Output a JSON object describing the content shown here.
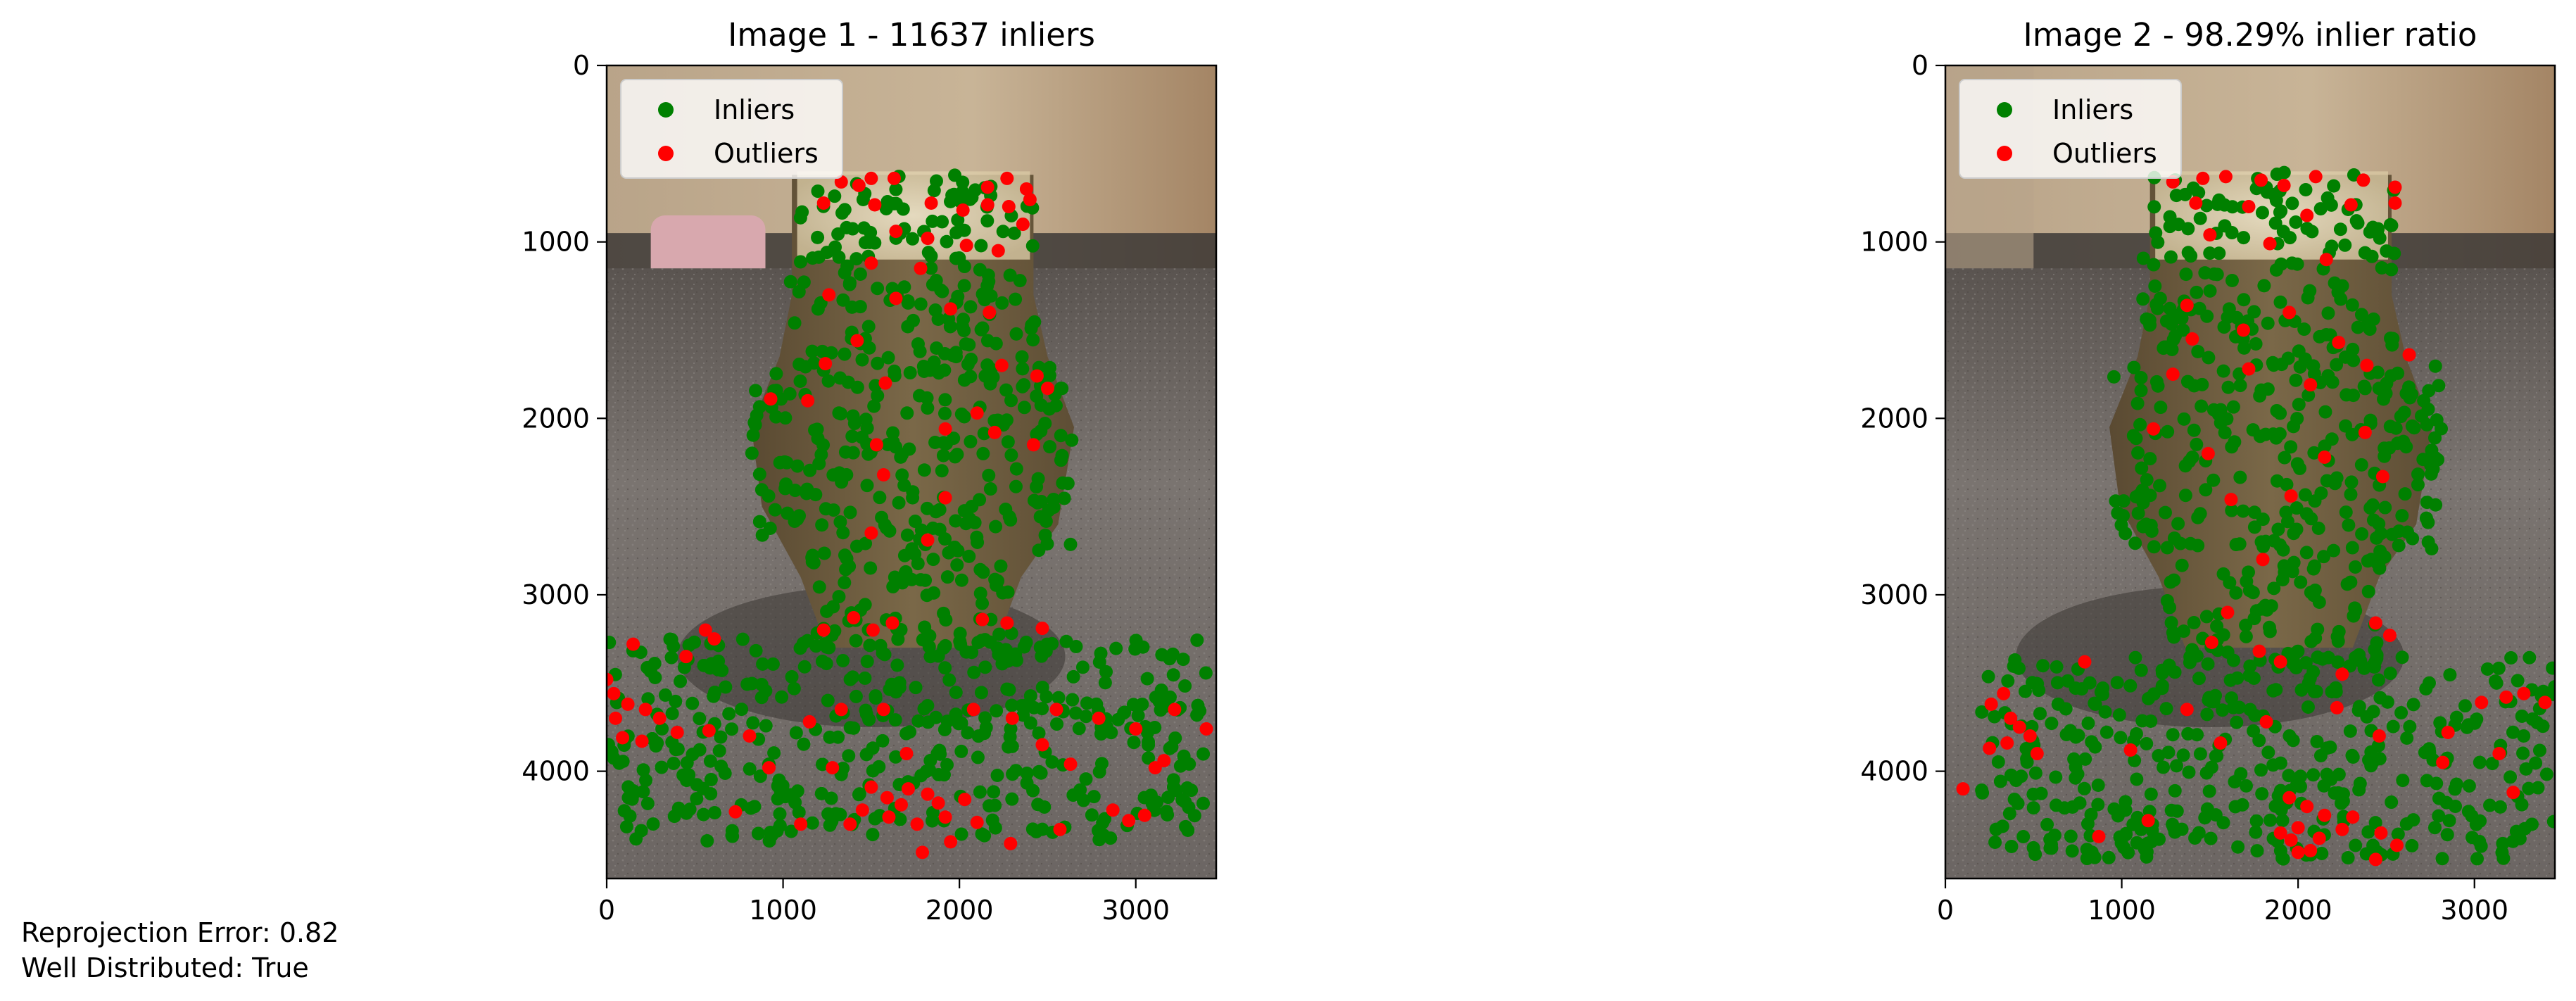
{
  "chart_data": [
    {
      "type": "scatter",
      "title": "Image 1 - 11637 inliers",
      "xlabel": "",
      "ylabel": "",
      "xlim": [
        0,
        3456
      ],
      "ylim": [
        4608,
        0
      ],
      "xticks": [
        0,
        1000,
        2000,
        3000
      ],
      "yticks": [
        0,
        1000,
        2000,
        3000,
        4000
      ],
      "grid": false,
      "legend_position": "upper-left",
      "series": [
        {
          "name": "Inliers",
          "color": "#008000",
          "regions": [
            {
              "x": [
                1080,
                2420
              ],
              "y": [
                620,
                1000
              ]
            },
            {
              "x": [
                1030,
                2450
              ],
              "y": [
                1000,
                1700
              ]
            },
            {
              "x": [
                820,
                2650
              ],
              "y": [
                1700,
                2750
              ]
            },
            {
              "x": [
                1150,
                2300
              ],
              "y": [
                2750,
                3350
              ]
            },
            {
              "x": [
                0,
                3400
              ],
              "y": [
                3250,
                4400
              ]
            }
          ]
        },
        {
          "name": "Outliers",
          "color": "#ff0000",
          "points": [
            [
              1330,
              660
            ],
            [
              1430,
              680
            ],
            [
              1500,
              640
            ],
            [
              1630,
              640
            ],
            [
              2160,
              690
            ],
            [
              2270,
              640
            ],
            [
              2380,
              700
            ],
            [
              2400,
              760
            ],
            [
              1230,
              780
            ],
            [
              1520,
              790
            ],
            [
              1840,
              780
            ],
            [
              2020,
              820
            ],
            [
              2160,
              790
            ],
            [
              2280,
              800
            ],
            [
              2360,
              900
            ],
            [
              1640,
              940
            ],
            [
              1820,
              980
            ],
            [
              2040,
              1020
            ],
            [
              2220,
              1050
            ],
            [
              1500,
              1120
            ],
            [
              1780,
              1150
            ],
            [
              1260,
              1300
            ],
            [
              1640,
              1320
            ],
            [
              1950,
              1380
            ],
            [
              2170,
              1400
            ],
            [
              1420,
              1560
            ],
            [
              1240,
              1690
            ],
            [
              2440,
              1760
            ],
            [
              2500,
              1830
            ],
            [
              930,
              1890
            ],
            [
              1140,
              1900
            ],
            [
              1580,
              1800
            ],
            [
              2240,
              1700
            ],
            [
              2100,
              1970
            ],
            [
              1920,
              2060
            ],
            [
              2200,
              2080
            ],
            [
              1530,
              2150
            ],
            [
              2420,
              2150
            ],
            [
              1570,
              2320
            ],
            [
              1920,
              2450
            ],
            [
              1820,
              2690
            ],
            [
              1500,
              2650
            ],
            [
              1230,
              3200
            ],
            [
              1400,
              3130
            ],
            [
              1510,
              3200
            ],
            [
              1620,
              3160
            ],
            [
              2130,
              3140
            ],
            [
              2270,
              3160
            ],
            [
              2470,
              3190
            ],
            [
              560,
              3200
            ],
            [
              610,
              3250
            ],
            [
              150,
              3280
            ],
            [
              450,
              3350
            ],
            [
              0,
              3480
            ],
            [
              40,
              3560
            ],
            [
              120,
              3620
            ],
            [
              220,
              3650
            ],
            [
              300,
              3700
            ],
            [
              50,
              3700
            ],
            [
              400,
              3780
            ],
            [
              90,
              3810
            ],
            [
              200,
              3830
            ],
            [
              580,
              3770
            ],
            [
              810,
              3800
            ],
            [
              1150,
              3720
            ],
            [
              1330,
              3650
            ],
            [
              1570,
              3650
            ],
            [
              2080,
              3650
            ],
            [
              2300,
              3700
            ],
            [
              2550,
              3650
            ],
            [
              2790,
              3700
            ],
            [
              3000,
              3760
            ],
            [
              3220,
              3650
            ],
            [
              3400,
              3760
            ],
            [
              2470,
              3850
            ],
            [
              1700,
              3900
            ],
            [
              1280,
              3980
            ],
            [
              920,
              3980
            ],
            [
              2630,
              3960
            ],
            [
              3110,
              3980
            ],
            [
              3160,
              3940
            ],
            [
              1500,
              4090
            ],
            [
              1590,
              4150
            ],
            [
              1670,
              4190
            ],
            [
              1710,
              4100
            ],
            [
              1820,
              4130
            ],
            [
              1880,
              4180
            ],
            [
              1600,
              4260
            ],
            [
              1760,
              4300
            ],
            [
              1920,
              4260
            ],
            [
              2030,
              4160
            ],
            [
              1450,
              4220
            ],
            [
              1380,
              4300
            ],
            [
              2100,
              4290
            ],
            [
              2870,
              4220
            ],
            [
              2960,
              4280
            ],
            [
              3050,
              4250
            ],
            [
              1790,
              4460
            ],
            [
              1950,
              4400
            ],
            [
              2290,
              4410
            ],
            [
              1100,
              4300
            ],
            [
              730,
              4230
            ],
            [
              2570,
              4330
            ]
          ]
        }
      ]
    },
    {
      "type": "scatter",
      "title": "Image 2 - 98.29% inlier ratio",
      "xlabel": "",
      "ylabel": "",
      "xlim": [
        0,
        3456
      ],
      "ylim": [
        4608,
        0
      ],
      "xticks": [
        0,
        1000,
        2000,
        3000
      ],
      "yticks": [
        0,
        1000,
        2000,
        3000,
        4000
      ],
      "grid": false,
      "legend_position": "upper-left",
      "series": [
        {
          "name": "Inliers",
          "color": "#008000",
          "regions": [
            {
              "x": [
                1160,
                2560
              ],
              "y": [
                600,
                1000
              ]
            },
            {
              "x": [
                1120,
                2560
              ],
              "y": [
                1000,
                1700
              ]
            },
            {
              "x": [
                950,
                2820
              ],
              "y": [
                1700,
                2750
              ]
            },
            {
              "x": [
                1250,
                2500
              ],
              "y": [
                2750,
                3400
              ]
            },
            {
              "x": [
                200,
                3456
              ],
              "y": [
                3350,
                4500
              ]
            }
          ]
        },
        {
          "name": "Outliers",
          "color": "#ff0000",
          "points": [
            [
              1290,
              660
            ],
            [
              1460,
              640
            ],
            [
              1590,
              630
            ],
            [
              1790,
              650
            ],
            [
              1920,
              680
            ],
            [
              2100,
              630
            ],
            [
              2370,
              650
            ],
            [
              2550,
              690
            ],
            [
              2550,
              780
            ],
            [
              1420,
              780
            ],
            [
              1720,
              800
            ],
            [
              2050,
              850
            ],
            [
              2300,
              790
            ],
            [
              1500,
              960
            ],
            [
              1840,
              1010
            ],
            [
              2160,
              1100
            ],
            [
              1370,
              1360
            ],
            [
              1400,
              1550
            ],
            [
              1690,
              1500
            ],
            [
              1950,
              1400
            ],
            [
              2230,
              1570
            ],
            [
              1290,
              1750
            ],
            [
              1720,
              1720
            ],
            [
              2070,
              1810
            ],
            [
              2390,
              1700
            ],
            [
              2630,
              1640
            ],
            [
              1180,
              2060
            ],
            [
              1490,
              2200
            ],
            [
              2150,
              2220
            ],
            [
              2480,
              2330
            ],
            [
              1620,
              2460
            ],
            [
              1960,
              2440
            ],
            [
              2380,
              2080
            ],
            [
              1800,
              2800
            ],
            [
              1600,
              3100
            ],
            [
              1510,
              3270
            ],
            [
              1780,
              3320
            ],
            [
              1900,
              3380
            ],
            [
              2440,
              3160
            ],
            [
              2520,
              3230
            ],
            [
              2250,
              3450
            ],
            [
              790,
              3380
            ],
            [
              330,
              3560
            ],
            [
              260,
              3620
            ],
            [
              370,
              3700
            ],
            [
              420,
              3750
            ],
            [
              480,
              3800
            ],
            [
              350,
              3840
            ],
            [
              250,
              3870
            ],
            [
              520,
              3900
            ],
            [
              1050,
              3880
            ],
            [
              1370,
              3650
            ],
            [
              1560,
              3840
            ],
            [
              1820,
              3720
            ],
            [
              2220,
              3640
            ],
            [
              2460,
              3800
            ],
            [
              2850,
              3780
            ],
            [
              3040,
              3610
            ],
            [
              3180,
              3580
            ],
            [
              3280,
              3560
            ],
            [
              3400,
              3610
            ],
            [
              3140,
              3900
            ],
            [
              2820,
              3950
            ],
            [
              3220,
              4120
            ],
            [
              1950,
              4150
            ],
            [
              2050,
              4200
            ],
            [
              2150,
              4250
            ],
            [
              1900,
              4350
            ],
            [
              2000,
              4320
            ],
            [
              2120,
              4380
            ],
            [
              2250,
              4330
            ],
            [
              2310,
              4260
            ],
            [
              2470,
              4350
            ],
            [
              2560,
              4420
            ],
            [
              1960,
              4390
            ],
            [
              2070,
              4450
            ],
            [
              870,
              4370
            ],
            [
              1150,
              4280
            ],
            [
              100,
              4100
            ],
            [
              2440,
              4500
            ],
            [
              2000,
              4460
            ]
          ]
        }
      ]
    }
  ],
  "footer": {
    "line1": "Reprojection Error: 0.82",
    "line2": "Well Distributed: True"
  }
}
